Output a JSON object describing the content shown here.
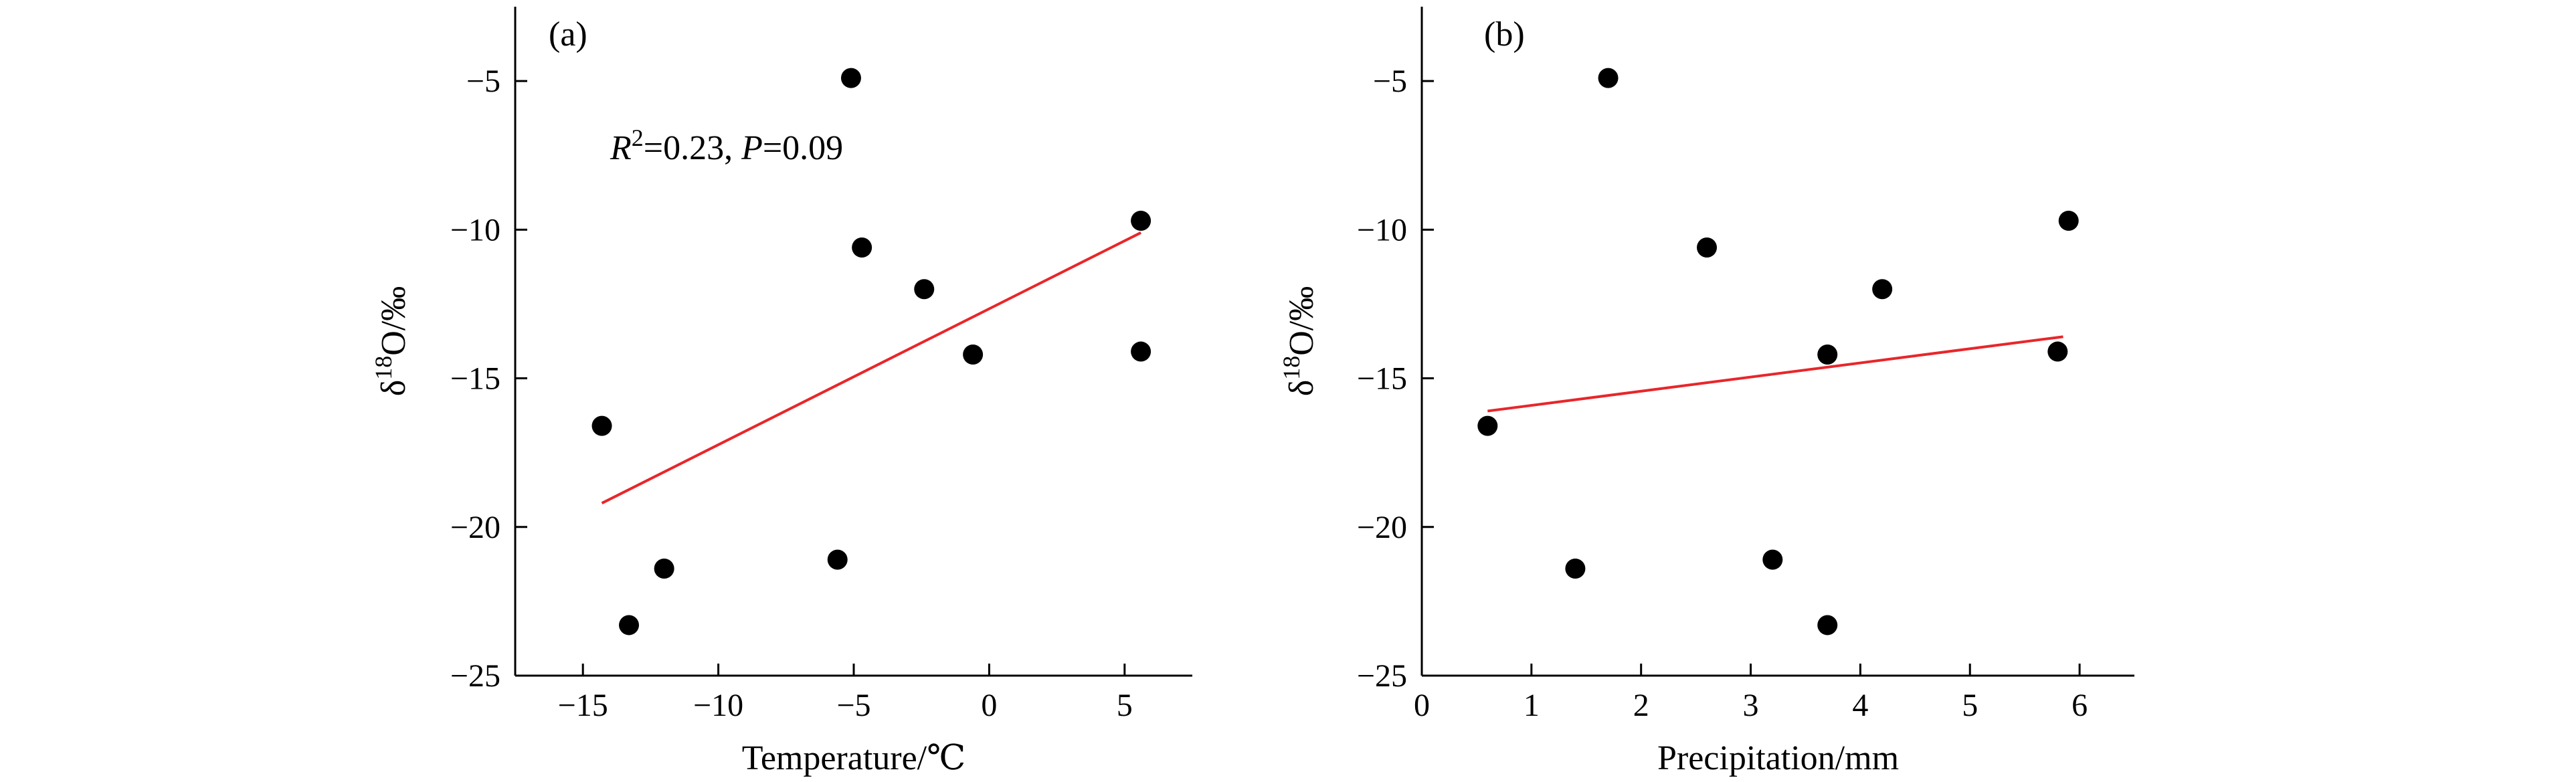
{
  "chart_data": [
    {
      "type": "scatter",
      "panel_label": "(a)",
      "xlabel": "Temperature/℃",
      "ylabel": {
        "base": "δ",
        "sup": "18",
        "rest": "O/‰"
      },
      "xlim": [
        -17.5,
        7.5
      ],
      "ylim": [
        -25,
        -2.5
      ],
      "xticks": [
        -15,
        -10,
        -5,
        0,
        5
      ],
      "yticks": [
        -5,
        -10,
        -15,
        -20,
        -25
      ],
      "points": [
        {
          "x": 5.6,
          "y": -9.7
        },
        {
          "x": -5.1,
          "y": -4.9
        },
        {
          "x": -14.3,
          "y": -16.6
        },
        {
          "x": -13.3,
          "y": -23.3
        },
        {
          "x": -12.0,
          "y": -21.4
        },
        {
          "x": -5.6,
          "y": -21.1
        },
        {
          "x": -4.7,
          "y": -10.6
        },
        {
          "x": -2.4,
          "y": -12.0
        },
        {
          "x": -0.6,
          "y": -14.2
        },
        {
          "x": 5.6,
          "y": -14.1
        }
      ],
      "fit_line": {
        "x": [
          -14.3,
          5.6
        ],
        "y": [
          -19.2,
          -10.1
        ],
        "color": "#e8262a"
      },
      "annotation": {
        "r_italic": "R",
        "r_sup": "2",
        "r_rest": "=0.23, ",
        "p_italic": "P",
        "p_rest": "=0.09"
      },
      "point_color": "#000000",
      "grid": false
    },
    {
      "type": "scatter",
      "panel_label": "(b)",
      "xlabel": "Precipitation/mm",
      "ylabel": {
        "base": "δ",
        "sup": "18",
        "rest": "O/‰"
      },
      "xlim": [
        0,
        6.5
      ],
      "ylim": [
        -25,
        -2.5
      ],
      "xticks": [
        0,
        1,
        2,
        3,
        4,
        5,
        6
      ],
      "yticks": [
        -5,
        -10,
        -15,
        -20,
        -25
      ],
      "points": [
        {
          "x": 0.6,
          "y": -16.6
        },
        {
          "x": 1.4,
          "y": -21.4
        },
        {
          "x": 1.7,
          "y": -4.9
        },
        {
          "x": 2.6,
          "y": -10.6
        },
        {
          "x": 3.2,
          "y": -21.1
        },
        {
          "x": 3.7,
          "y": -14.2
        },
        {
          "x": 3.7,
          "y": -23.3
        },
        {
          "x": 4.2,
          "y": -12.0
        },
        {
          "x": 5.8,
          "y": -14.1
        },
        {
          "x": 5.9,
          "y": -9.7
        }
      ],
      "fit_line": {
        "x": [
          0.6,
          5.85
        ],
        "y": [
          -16.1,
          -13.6
        ],
        "color": "#e8262a"
      },
      "point_color": "#000000",
      "grid": false
    }
  ]
}
